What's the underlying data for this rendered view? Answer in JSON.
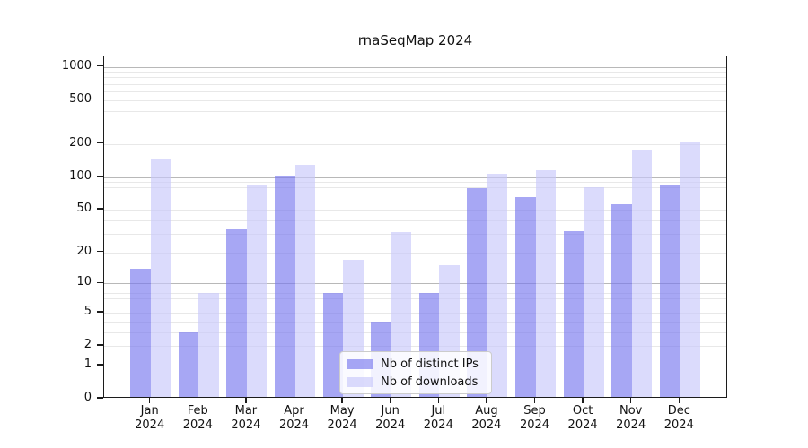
{
  "title": "rnaSeqMap 2024",
  "chart_data": {
    "type": "bar",
    "title": "rnaSeqMap 2024",
    "categories": [
      "Jan",
      "Feb",
      "Mar",
      "Apr",
      "May",
      "Jun",
      "Jul",
      "Aug",
      "Sep",
      "Oct",
      "Nov",
      "Dec"
    ],
    "category_year": "2024",
    "series": [
      {
        "name": "Nb of distinct IPs",
        "color": "#7878ee",
        "opacity": 0.65,
        "values": [
          14,
          3,
          33,
          102,
          8,
          4,
          8,
          79,
          66,
          32,
          56,
          85
        ]
      },
      {
        "name": "Nb of downloads",
        "color": "#c8c8fa",
        "opacity": 0.65,
        "values": [
          148,
          8,
          86,
          128,
          17,
          31,
          15,
          107,
          116,
          81,
          179,
          209
        ]
      }
    ],
    "yscale": "log1p",
    "yticks": [
      0,
      1,
      2,
      5,
      10,
      20,
      50,
      100,
      200,
      500,
      1000
    ],
    "ylim": [
      0,
      1240
    ],
    "xlabel": "",
    "ylabel": "",
    "grid": {
      "major": [
        1,
        10,
        100,
        1000
      ],
      "minor": [
        2,
        3,
        4,
        5,
        6,
        7,
        8,
        9,
        20,
        30,
        40,
        50,
        60,
        70,
        80,
        90,
        200,
        300,
        400,
        500,
        600,
        700,
        800,
        900
      ]
    },
    "legend_position": "lower center",
    "colors": {
      "grid_major": "#b8b8b8",
      "grid_minor": "#e8e8e8",
      "axis": "#1c1c1c",
      "background": "#ffffff"
    }
  }
}
